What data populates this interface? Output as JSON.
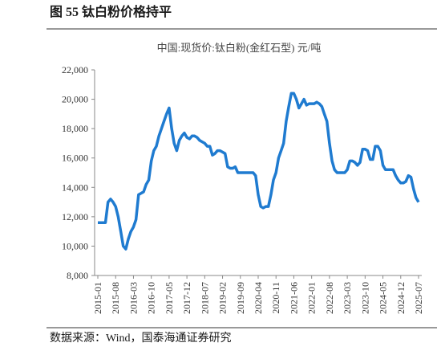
{
  "header": {
    "title": "图 55  钛白粉价格持平"
  },
  "chart_data": {
    "type": "line",
    "title": "中国:现货价:钛白粉(金红石型) 元/吨",
    "categories": [
      "2015-01",
      null,
      null,
      null,
      null,
      null,
      null,
      "2015-08",
      null,
      null,
      null,
      null,
      null,
      null,
      "2016-03",
      null,
      null,
      null,
      null,
      null,
      null,
      "2016-10",
      null,
      null,
      null,
      null,
      null,
      null,
      "2017-05",
      null,
      null,
      null,
      null,
      null,
      null,
      "2017-12",
      null,
      null,
      null,
      null,
      null,
      null,
      "2018-07",
      null,
      null,
      null,
      null,
      null,
      null,
      "2019-02",
      null,
      null,
      null,
      null,
      null,
      null,
      "2019-09",
      null,
      null,
      null,
      null,
      null,
      null,
      "2020-04",
      null,
      null,
      null,
      null,
      null,
      null,
      "2020-11",
      null,
      null,
      null,
      null,
      null,
      null,
      "2021-06",
      null,
      null,
      null,
      null,
      null,
      null,
      "2022-01",
      null,
      null,
      null,
      null,
      null,
      null,
      "2022-08",
      null,
      null,
      null,
      null,
      null,
      null,
      "2023-03",
      null,
      null,
      null,
      null,
      null,
      null,
      "2023-10",
      null,
      null,
      null,
      null,
      null,
      null,
      "2024-05",
      null,
      null,
      null,
      null,
      null,
      null,
      "2024-12",
      null,
      null,
      null,
      null,
      null,
      null,
      "2025-07"
    ],
    "series": [
      {
        "color": "#1f7bd0",
        "values": [
          11600,
          11600,
          11600,
          11600,
          13000,
          13200,
          13000,
          12700,
          12000,
          11000,
          10000,
          9800,
          10500,
          11000,
          11300,
          11800,
          13500,
          13600,
          13700,
          14200,
          14500,
          15800,
          16500,
          16800,
          17500,
          18000,
          18500,
          19000,
          19400,
          18000,
          17000,
          16500,
          17200,
          17500,
          17700,
          17400,
          17300,
          17500,
          17500,
          17400,
          17200,
          17100,
          17000,
          16800,
          16800,
          16200,
          16300,
          16500,
          16500,
          16400,
          16300,
          15400,
          15300,
          15300,
          15400,
          15000,
          15000,
          15000,
          15000,
          15000,
          15000,
          15000,
          14800,
          13500,
          12700,
          12600,
          12700,
          12700,
          13500,
          14500,
          15000,
          16000,
          16500,
          17000,
          18500,
          19500,
          20400,
          20400,
          20000,
          19400,
          19700,
          20000,
          19600,
          19700,
          19700,
          19700,
          19800,
          19700,
          19500,
          19000,
          18500,
          17000,
          15800,
          15200,
          15000,
          15000,
          15000,
          15000,
          15200,
          15800,
          15800,
          15700,
          15500,
          15700,
          16600,
          16600,
          16500,
          15900,
          15900,
          16800,
          16800,
          16500,
          15500,
          15200,
          15200,
          15200,
          15200,
          14800,
          14500,
          14300,
          14300,
          14400,
          14800,
          14700,
          13900,
          13300,
          13000
        ]
      }
    ],
    "ylim": [
      8000,
      22000
    ],
    "yticks": [
      {
        "value": 8000,
        "label": "8,000"
      },
      {
        "value": 10000,
        "label": "10,000"
      },
      {
        "value": 12000,
        "label": "12,000"
      },
      {
        "value": 14000,
        "label": "14,000"
      },
      {
        "value": 16000,
        "label": "16,000"
      },
      {
        "value": 18000,
        "label": "18,000"
      },
      {
        "value": 20000,
        "label": "20,000"
      },
      {
        "value": 22000,
        "label": "22,000"
      }
    ],
    "grid": false
  },
  "footer": {
    "source": "数据来源：Wind，国泰海通证券研究"
  }
}
